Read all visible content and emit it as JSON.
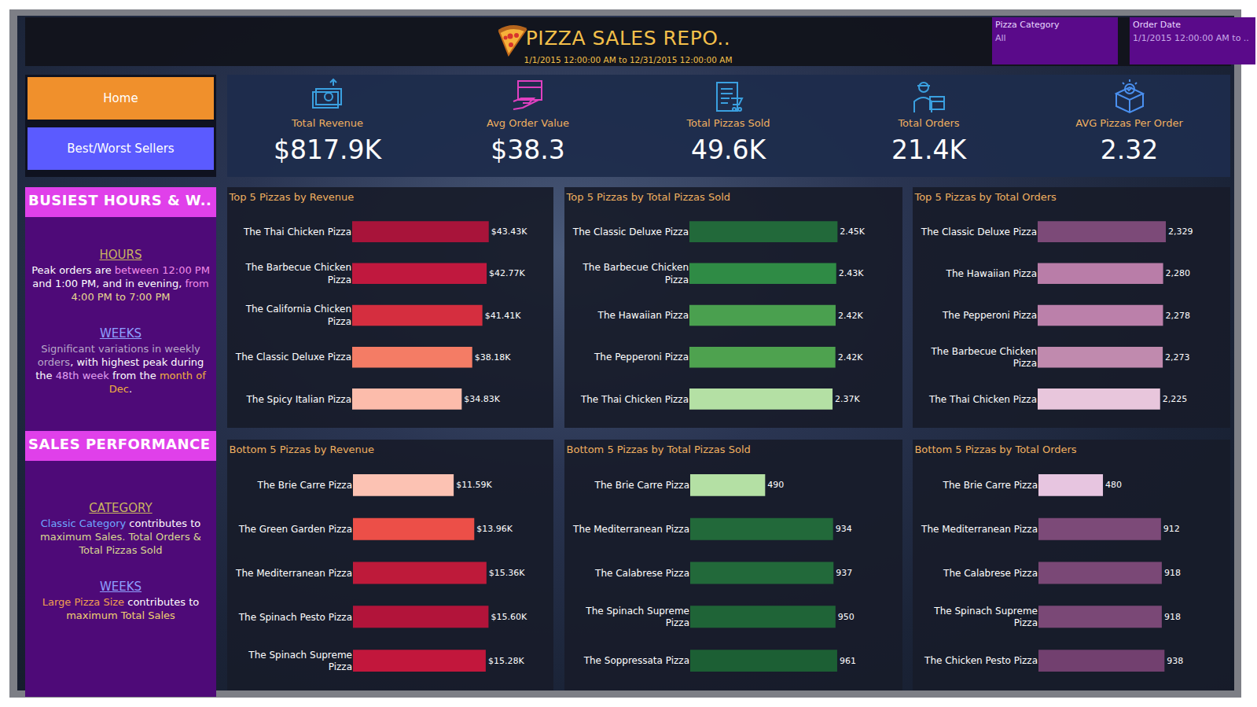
{
  "header": {
    "title": "PIZZA SALES REPO..",
    "subtitle": "1/1/2015 12:00:00 AM to 12/31/2015 12:00:00 AM",
    "filters": [
      {
        "label": "Pizza Category",
        "value": "All"
      },
      {
        "label": "Order Date",
        "value": "1/1/2015 12:00:00 AM to .."
      }
    ]
  },
  "nav": [
    "Home",
    "Best/Worst Sellers"
  ],
  "kpis": [
    {
      "label": "Total Revenue",
      "value": "$817.9K"
    },
    {
      "label": "Avg Order Value",
      "value": "$38.3"
    },
    {
      "label": "Total Pizzas Sold",
      "value": "49.6K"
    },
    {
      "label": "Total Orders",
      "value": "21.4K"
    },
    {
      "label": "AVG Pizzas Per Order",
      "value": "2.32"
    }
  ],
  "side_panels": [
    {
      "title": "BUSIEST HOURS & W..",
      "sections": [
        {
          "heading": "HOURS",
          "segments": [
            {
              "text": "Peak orders are ",
              "color": "#ffffff"
            },
            {
              "text": "between 12:00 PM",
              "color": "#f08ce8"
            },
            {
              "text": " and 1:00 PM, and in evening, ",
              "color": "#ffffff"
            },
            {
              "text": "from",
              "color": "#f08ce8"
            },
            {
              "text": " 4:00 PM to 7:00 PM",
              "color": "#e8d890"
            }
          ]
        },
        {
          "heading": "WEEKS",
          "segments": [
            {
              "text": "Significant variations in weekly orders",
              "color": "#b8a8c8"
            },
            {
              "text": ", with highest peak during the ",
              "color": "#ffffff"
            },
            {
              "text": "48th week",
              "color": "#e0a0f0"
            },
            {
              "text": " from the ",
              "color": "#ffffff"
            },
            {
              "text": "month of Dec",
              "color": "#f0b040"
            },
            {
              "text": ".",
              "color": "#ffffff"
            }
          ]
        }
      ]
    },
    {
      "title": "SALES PERFORMANCE",
      "sections": [
        {
          "heading": "CATEGORY",
          "segments": [
            {
              "text": "Classic Category",
              "color": "#6fa8ff"
            },
            {
              "text": " contributes to ",
              "color": "#ffffff"
            },
            {
              "text": "maximum Sales. Total Orders & Total Pizzas Sold",
              "color": "#d8d890"
            }
          ]
        },
        {
          "heading": "WEEKS",
          "segments": [
            {
              "text": "Large Pizza Size",
              "color": "#f0a050"
            },
            {
              "text": " contributes to ",
              "color": "#ffffff"
            },
            {
              "text": "maximum Total Sales",
              "color": "#f0d070"
            }
          ]
        }
      ]
    }
  ],
  "chart_data": [
    {
      "type": "bar",
      "title": "Top 5 Pizzas by Revenue",
      "orientation": "horizontal",
      "categories": [
        "The Thai Chicken Pizza",
        "The Barbecue Chicken Pizza",
        "The California Chicken Pizza",
        "The Classic Deluxe Pizza",
        "The Spicy Italian Pizza"
      ],
      "values": [
        43434.25,
        42768,
        41409.5,
        38180.5,
        34831.25
      ],
      "value_labels": [
        "$43.43K",
        "$42.77K",
        "$41.41K",
        "$38.18K",
        "$34.83K"
      ],
      "colors": [
        "#a8143a",
        "#c0183e",
        "#d52e3f",
        "#f47c65",
        "#fcbcab"
      ],
      "xlim": [
        0,
        50000
      ],
      "data_labels": true,
      "tick_labels": "y"
    },
    {
      "type": "bar",
      "title": "Top 5 Pizzas by Total Pizzas Sold",
      "orientation": "horizontal",
      "categories": [
        "The Classic Deluxe Pizza",
        "The Barbecue Chicken Pizza",
        "The Hawaiian Pizza",
        "The Pepperoni Pizza",
        "The Thai Chicken Pizza"
      ],
      "values": [
        2453,
        2432,
        2422,
        2418,
        2371
      ],
      "value_labels": [
        "2.45K",
        "2.43K",
        "2.42K",
        "2.42K",
        "2.37K"
      ],
      "colors": [
        "#22693a",
        "#2f8b45",
        "#4aa04f",
        "#4ea24f",
        "#b4e0a4"
      ],
      "xlim": [
        0,
        2800
      ],
      "data_labels": true,
      "tick_labels": "y"
    },
    {
      "type": "bar",
      "title": "Top 5 Pizzas by Total Orders",
      "orientation": "horizontal",
      "categories": [
        "The Classic Deluxe Pizza",
        "The Hawaiian Pizza",
        "The Pepperoni Pizza",
        "The Barbecue Chicken Pizza",
        "The Thai Chicken Pizza"
      ],
      "values": [
        2329,
        2280,
        2278,
        2273,
        2225
      ],
      "value_labels": [
        "2,329",
        "2,280",
        "2,278",
        "2,273",
        "2,225"
      ],
      "colors": [
        "#7c4a78",
        "#b97da8",
        "#bb80aa",
        "#c08aae",
        "#e8c6dc"
      ],
      "xlim": [
        0,
        2700
      ],
      "data_labels": true,
      "tick_labels": "y"
    },
    {
      "type": "bar",
      "title": "Bottom 5 Pizzas by Revenue",
      "orientation": "horizontal",
      "categories": [
        "The Brie Carre Pizza",
        "The Green Garden Pizza",
        "The Mediterranean Pizza",
        "The Spinach Pesto Pizza",
        "The Spinach Supreme Pizza"
      ],
      "values": [
        11588.5,
        13955.75,
        15360.5,
        15596,
        15277.75
      ],
      "value_labels": [
        "$11.59K",
        "$13.96K",
        "$15.36K",
        "$15.60K",
        "$15.28K"
      ],
      "colors": [
        "#fcc2b3",
        "#ec4f48",
        "#be1a3a",
        "#b2143a",
        "#c2173c"
      ],
      "xlim": [
        0,
        18000
      ],
      "data_labels": true,
      "tick_labels": "y"
    },
    {
      "type": "bar",
      "title": "Bottom 5 Pizzas by Total Pizzas Sold",
      "orientation": "horizontal",
      "categories": [
        "The Brie Carre Pizza",
        "The Mediterranean Pizza",
        "The Calabrese Pizza",
        "The Spinach Supreme Pizza",
        "The Soppressata Pizza"
      ],
      "values": [
        490,
        934,
        937,
        950,
        961
      ],
      "colors": [
        "#b4e0a4",
        "#22693a",
        "#22693a",
        "#1f6437",
        "#1c5f34"
      ],
      "xlim": [
        0,
        1100
      ],
      "data_labels": true,
      "tick_labels": "y"
    },
    {
      "type": "bar",
      "title": "Bottom 5 Pizzas by Total Orders",
      "orientation": "horizontal",
      "categories": [
        "The Brie Carre Pizza",
        "The Mediterranean Pizza",
        "The Calabrese Pizza",
        "The Spinach Supreme Pizza",
        "The Chicken Pesto Pizza"
      ],
      "values": [
        480,
        912,
        918,
        918,
        938
      ],
      "colors": [
        "#e7c5e0",
        "#7c4a78",
        "#7a4876",
        "#7a4876",
        "#72406f"
      ],
      "xlim": [
        0,
        1100
      ],
      "data_labels": true,
      "tick_labels": "y"
    }
  ]
}
